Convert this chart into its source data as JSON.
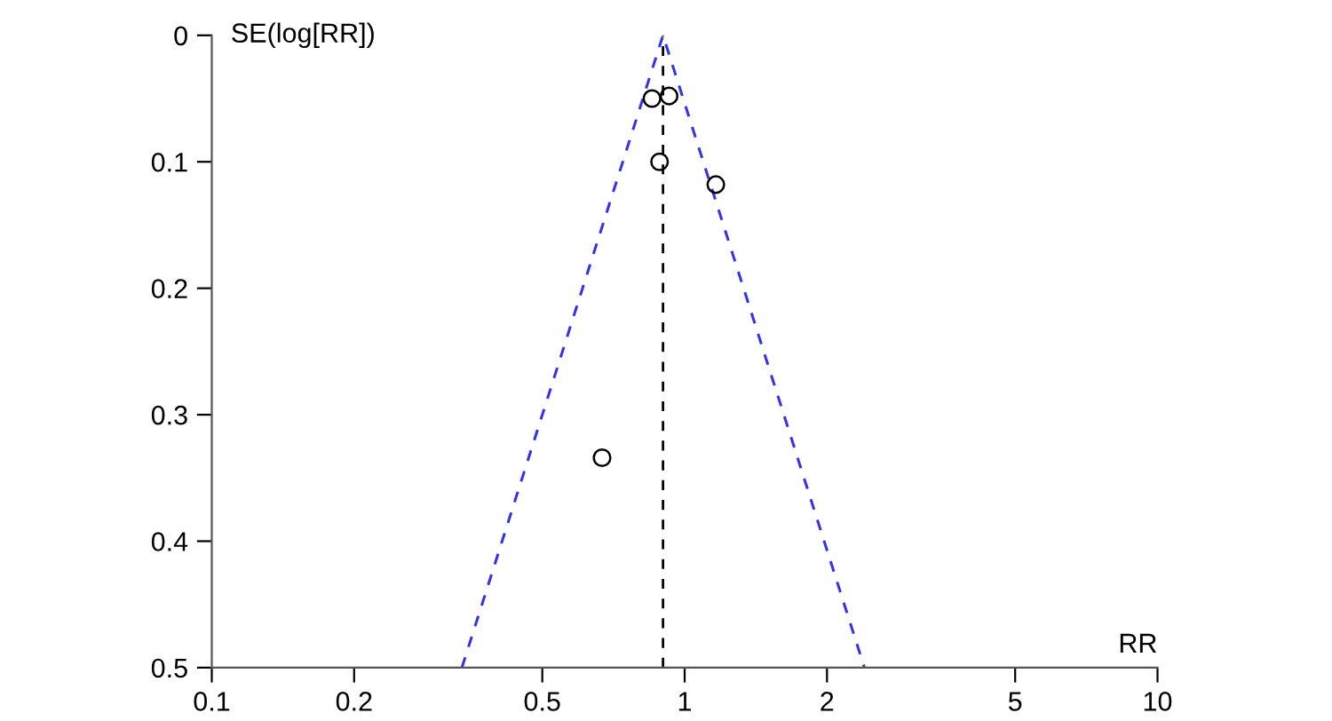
{
  "chart_data": {
    "type": "scatter",
    "xlabel": "RR",
    "ylabel": "SE(log[RR])",
    "log": "x",
    "xlim": [
      0.1,
      10
    ],
    "xticks": [
      0.1,
      0.2,
      0.5,
      1,
      2,
      5,
      10
    ],
    "ylim": [
      0.5,
      0
    ],
    "yticks": [
      0,
      0.1,
      0.2,
      0.3,
      0.4,
      0.5
    ],
    "grid": false,
    "legend": false,
    "series": [
      {
        "color": "#000000",
        "marker": "circle",
        "x": [
          0.853,
          0.927,
          0.885,
          1.164,
          0.669
        ],
        "values": [
          0.05,
          0.048,
          0.1,
          0.118,
          0.334
        ]
      },
      {
        "type": "line",
        "color": "#3333ee",
        "line_style": "dashed",
        "marker": "none",
        "x": [
          0.338,
          0.9,
          2.4
        ],
        "values": [
          0.5,
          0,
          0.5
        ]
      }
    ],
    "ref_lines": [
      {
        "axis": "x",
        "value": 0.9,
        "color": "#000000",
        "line_style": "dashed"
      }
    ]
  }
}
